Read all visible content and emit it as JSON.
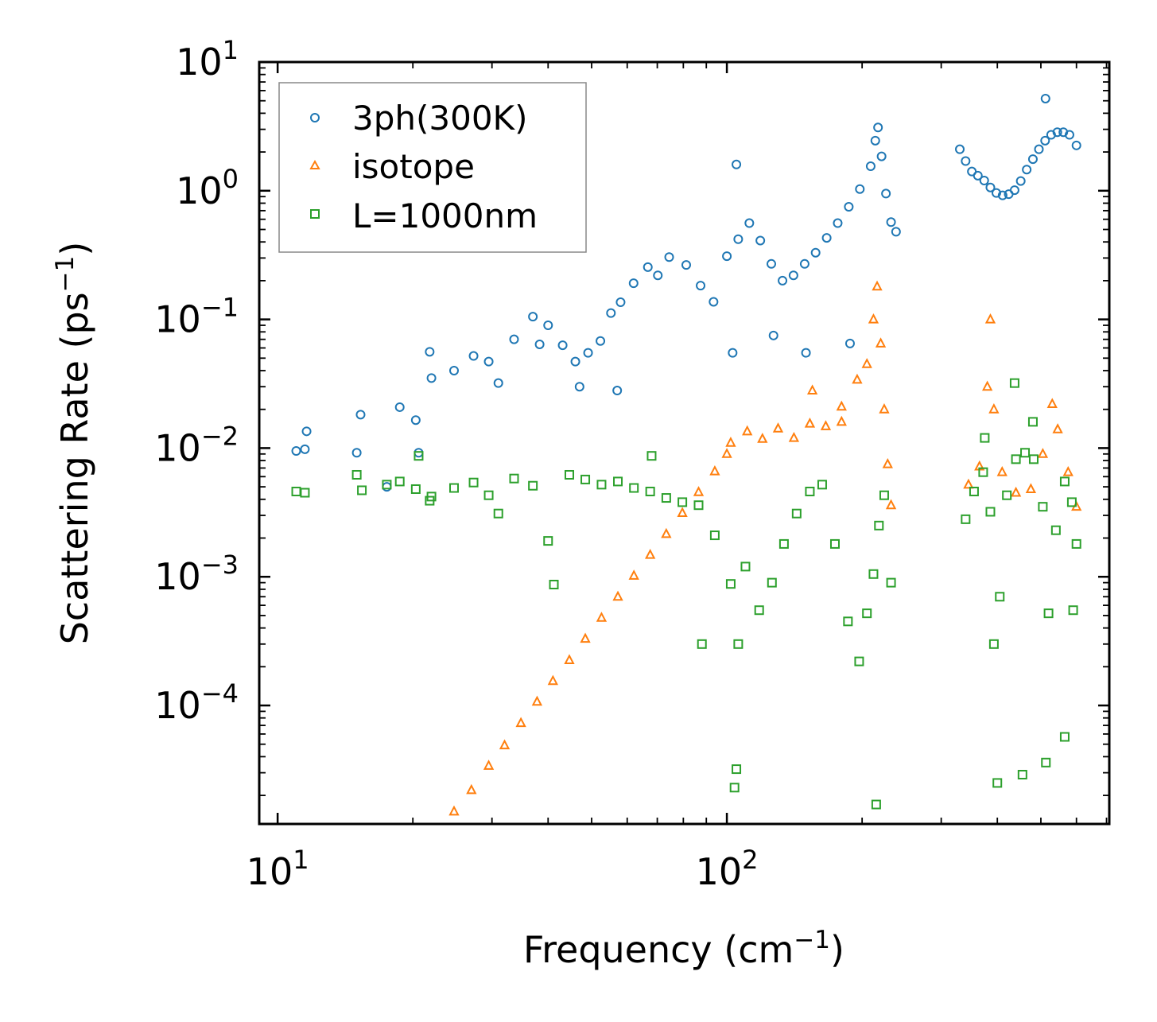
{
  "chart_data": {
    "type": "scatter",
    "title": "",
    "xlabel": "Frequency (cm$^{-1}$)",
    "xlabel_text": "Frequency (cm",
    "xlabel_sup": "−1",
    "xlabel_tail": ")",
    "ylabel": "Scattering Rate (ps$^{-1}$)",
    "ylabel_text": "Scattering Rate (ps",
    "ylabel_sup": "−1",
    "ylabel_tail": ")",
    "xscale": "log",
    "yscale": "log",
    "xlim": [
      9.1,
      710
    ],
    "ylim": [
      1.2e-05,
      10
    ],
    "x_ticks": [
      {
        "value": 10,
        "base": "10",
        "exp": "1"
      },
      {
        "value": 100,
        "base": "10",
        "exp": "2"
      }
    ],
    "y_ticks": [
      {
        "value": 10,
        "base": "10",
        "exp": "1"
      },
      {
        "value": 1,
        "base": "10",
        "exp": "0"
      },
      {
        "value": 0.1,
        "base": "10",
        "exp": "−1"
      },
      {
        "value": 0.01,
        "base": "10",
        "exp": "−2"
      },
      {
        "value": 0.001,
        "base": "10",
        "exp": "−3"
      },
      {
        "value": 0.0001,
        "base": "10",
        "exp": "−4"
      }
    ],
    "legend_position": "top-left",
    "series": [
      {
        "name": "3ph(300K)",
        "marker": "circle",
        "color": "#1f77b4",
        "points": [
          [
            11,
            0.0095
          ],
          [
            11.5,
            0.0098
          ],
          [
            11.6,
            0.0135
          ],
          [
            15,
            0.0092
          ],
          [
            15.3,
            0.0182
          ],
          [
            17.5,
            0.005
          ],
          [
            18.7,
            0.0208
          ],
          [
            20.3,
            0.0165
          ],
          [
            20.6,
            0.0092
          ],
          [
            21.8,
            0.056
          ],
          [
            22,
            0.035
          ],
          [
            24.7,
            0.04
          ],
          [
            27.3,
            0.052
          ],
          [
            29.5,
            0.047
          ],
          [
            31,
            0.032
          ],
          [
            33.6,
            0.07
          ],
          [
            37,
            0.105
          ],
          [
            38.3,
            0.064
          ],
          [
            40,
            0.09
          ],
          [
            43.1,
            0.063
          ],
          [
            46,
            0.047
          ],
          [
            49.1,
            0.055
          ],
          [
            52.3,
            0.068
          ],
          [
            55.2,
            0.112
          ],
          [
            58,
            0.136
          ],
          [
            62,
            0.191
          ],
          [
            66.7,
            0.255
          ],
          [
            70.2,
            0.22
          ],
          [
            74.4,
            0.305
          ],
          [
            81.2,
            0.265
          ],
          [
            87.4,
            0.183
          ],
          [
            93.4,
            0.137
          ],
          [
            100,
            0.31
          ],
          [
            106,
            0.42
          ],
          [
            112.2,
            0.56
          ],
          [
            118.7,
            0.41
          ],
          [
            125.6,
            0.27
          ],
          [
            133,
            0.2
          ],
          [
            140.7,
            0.22
          ],
          [
            149,
            0.27
          ],
          [
            157.6,
            0.33
          ],
          [
            166.8,
            0.43
          ],
          [
            176.5,
            0.56
          ],
          [
            186.8,
            0.75
          ],
          [
            197.7,
            1.03
          ],
          [
            209,
            1.55
          ],
          [
            214,
            2.45
          ],
          [
            217,
            3.1
          ],
          [
            221,
            1.85
          ],
          [
            226,
            0.95
          ],
          [
            232,
            0.57
          ],
          [
            238,
            0.48
          ],
          [
            330,
            2.1
          ],
          [
            340,
            1.7
          ],
          [
            351,
            1.41
          ],
          [
            362,
            1.31
          ],
          [
            374,
            1.2
          ],
          [
            386,
            1.06
          ],
          [
            398,
            0.96
          ],
          [
            411,
            0.92
          ],
          [
            424,
            0.94
          ],
          [
            437,
            1.01
          ],
          [
            451,
            1.19
          ],
          [
            465,
            1.46
          ],
          [
            480,
            1.76
          ],
          [
            495,
            2.1
          ],
          [
            511,
            2.45
          ],
          [
            527,
            2.72
          ],
          [
            544,
            2.85
          ],
          [
            561,
            2.85
          ],
          [
            579,
            2.72
          ],
          [
            600,
            2.25
          ],
          [
            512,
            5.2
          ],
          [
            105,
            1.6
          ],
          [
            103,
            0.055
          ],
          [
            127,
            0.075
          ],
          [
            150,
            0.055
          ],
          [
            188,
            0.065
          ],
          [
            57,
            0.028
          ],
          [
            47,
            0.03
          ]
        ]
      },
      {
        "name": "isotope",
        "marker": "triangle",
        "color": "#ff7f0e",
        "points": [
          [
            24.7,
            1.5e-05
          ],
          [
            27,
            2.2e-05
          ],
          [
            29.5,
            3.4e-05
          ],
          [
            32,
            4.9e-05
          ],
          [
            34.8,
            7.3e-05
          ],
          [
            37.8,
            0.000107
          ],
          [
            41,
            0.000155
          ],
          [
            44.6,
            0.000225
          ],
          [
            48.4,
            0.00033
          ],
          [
            52.6,
            0.00048
          ],
          [
            57.2,
            0.0007
          ],
          [
            62.1,
            0.00102
          ],
          [
            67.5,
            0.00148
          ],
          [
            73.3,
            0.00215
          ],
          [
            79.6,
            0.00313
          ],
          [
            86.5,
            0.00455
          ],
          [
            94,
            0.0066
          ],
          [
            102,
            0.011
          ],
          [
            111,
            0.0135
          ],
          [
            120,
            0.0118
          ],
          [
            130,
            0.0142
          ],
          [
            141,
            0.012
          ],
          [
            153,
            0.0155
          ],
          [
            166,
            0.0148
          ],
          [
            180,
            0.021
          ],
          [
            195,
            0.034
          ],
          [
            205,
            0.045
          ],
          [
            212,
            0.1
          ],
          [
            216,
            0.18
          ],
          [
            220,
            0.065
          ],
          [
            224,
            0.02
          ],
          [
            228,
            0.0075
          ],
          [
            232,
            0.0036
          ],
          [
            345,
            0.0052
          ],
          [
            365,
            0.0072
          ],
          [
            380,
            0.03
          ],
          [
            386,
            0.1
          ],
          [
            393,
            0.02
          ],
          [
            410,
            0.0065
          ],
          [
            440,
            0.0045
          ],
          [
            475,
            0.0048
          ],
          [
            505,
            0.009
          ],
          [
            530,
            0.022
          ],
          [
            545,
            0.014
          ],
          [
            575,
            0.0065
          ],
          [
            600,
            0.0035
          ],
          [
            100,
            0.009
          ],
          [
            155,
            0.028
          ],
          [
            180,
            0.016
          ]
        ]
      },
      {
        "name": "L=1000nm",
        "marker": "square",
        "color": "#2ca02c",
        "points": [
          [
            11,
            0.0046
          ],
          [
            11.5,
            0.0045
          ],
          [
            15,
            0.0062
          ],
          [
            15.4,
            0.0047
          ],
          [
            17.5,
            0.0052
          ],
          [
            18.7,
            0.0055
          ],
          [
            20.3,
            0.0048
          ],
          [
            20.6,
            0.0087
          ],
          [
            21.8,
            0.0039
          ],
          [
            22,
            0.0042
          ],
          [
            24.7,
            0.0049
          ],
          [
            27.3,
            0.0054
          ],
          [
            29.5,
            0.0043
          ],
          [
            31,
            0.0031
          ],
          [
            33.6,
            0.0058
          ],
          [
            37,
            0.0051
          ],
          [
            40,
            0.0019
          ],
          [
            41.2,
            0.00087
          ],
          [
            44.6,
            0.0062
          ],
          [
            48.4,
            0.0057
          ],
          [
            52.6,
            0.0052
          ],
          [
            57.2,
            0.0055
          ],
          [
            62.1,
            0.0049
          ],
          [
            67.5,
            0.0046
          ],
          [
            73.3,
            0.0041
          ],
          [
            79.6,
            0.0038
          ],
          [
            86.5,
            0.0036
          ],
          [
            94,
            0.0021
          ],
          [
            102,
            0.00088
          ],
          [
            106,
            0.0003
          ],
          [
            110,
            0.0012
          ],
          [
            118,
            0.00055
          ],
          [
            126,
            0.0009
          ],
          [
            134,
            0.0018
          ],
          [
            143,
            0.0031
          ],
          [
            153,
            0.0046
          ],
          [
            163,
            0.0052
          ],
          [
            174,
            0.0018
          ],
          [
            186,
            0.00045
          ],
          [
            197,
            0.00022
          ],
          [
            205,
            0.00052
          ],
          [
            212,
            0.00105
          ],
          [
            218,
            0.0025
          ],
          [
            224,
            0.0043
          ],
          [
            232,
            0.0009
          ],
          [
            340,
            0.0028
          ],
          [
            355,
            0.0046
          ],
          [
            372,
            0.0065
          ],
          [
            386,
            0.0032
          ],
          [
            393,
            0.0003
          ],
          [
            405,
            0.0007
          ],
          [
            420,
            0.0043
          ],
          [
            440,
            0.0082
          ],
          [
            461,
            0.0092
          ],
          [
            482,
            0.0082
          ],
          [
            505,
            0.0035
          ],
          [
            520,
            0.00052
          ],
          [
            540,
            0.0023
          ],
          [
            565,
            0.0055
          ],
          [
            586,
            0.0038
          ],
          [
            600,
            0.0018
          ],
          [
            88,
            0.0003
          ],
          [
            104,
            2.3e-05
          ],
          [
            105,
            3.2e-05
          ],
          [
            215,
            1.7e-05
          ],
          [
            437,
            0.032
          ],
          [
            375,
            0.012
          ],
          [
            480,
            0.016
          ],
          [
            400,
            2.5e-05
          ],
          [
            455,
            2.9e-05
          ],
          [
            513,
            3.6e-05
          ],
          [
            565,
            5.7e-05
          ],
          [
            590,
            0.00055
          ],
          [
            68,
            0.0087
          ]
        ]
      }
    ]
  }
}
